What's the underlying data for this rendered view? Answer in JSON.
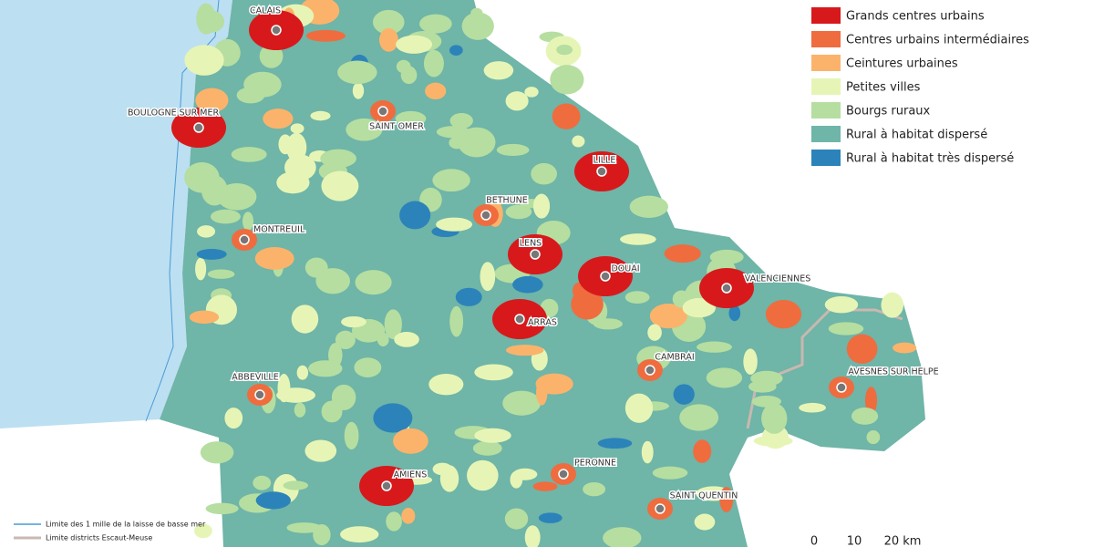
{
  "legend": [
    {
      "label": "Grands centres urbains",
      "color": "#d7191c"
    },
    {
      "label": "Centres urbains intermédiaires",
      "color": "#ef6c3f"
    },
    {
      "label": "Ceintures urbaines",
      "color": "#fbb36b"
    },
    {
      "label": "Petites villes",
      "color": "#e6f5b5"
    },
    {
      "label": "Bourgs ruraux",
      "color": "#b5dea0"
    },
    {
      "label": "Rural à habitat dispersé",
      "color": "#6fb5a8"
    },
    {
      "label": "Rural à habitat très dispersé",
      "color": "#2b83ba"
    }
  ],
  "cities": [
    "CALAIS",
    "BOULOGNE SUR MER",
    "SAINT OMER",
    "MONTREUIL",
    "LILLE",
    "BETHUNE",
    "LENS",
    "DOUAI",
    "VALENCIENNES",
    "ARRAS",
    "CAMBRAI",
    "ABBEVILLE",
    "AVESNES SUR HELPE",
    "PERONNE",
    "AMIENS",
    "SAINT QUENTIN"
  ],
  "boundary_legend": [
    "Limite des 1 mille de la laisse de basse mer",
    "Limite districts Escaut-Meuse"
  ],
  "scale": [
    "0",
    "10",
    "20 km"
  ]
}
